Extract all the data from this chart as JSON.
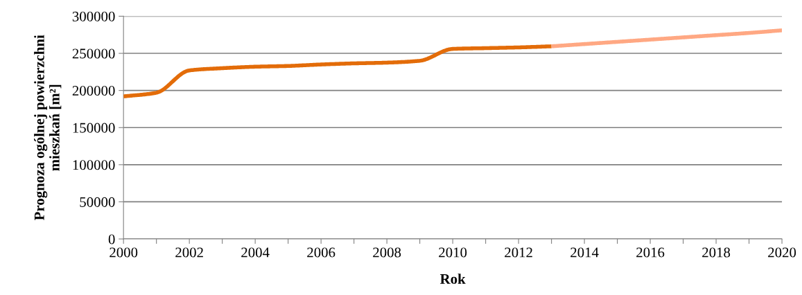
{
  "chart_data": {
    "type": "line",
    "xlabel": "Rok",
    "ylabel": "Prognoza ogólnej powierzchni\nmieszkań [m²]",
    "series": [
      {
        "color": "#e36c09",
        "x": [
          2000,
          2001,
          2002,
          2003,
          2004,
          2005,
          2006,
          2007,
          2008,
          2009,
          2010,
          2011,
          2012,
          2013
        ],
        "values": [
          192000,
          197000,
          227000,
          230000,
          232000,
          233000,
          235000,
          236500,
          237500,
          240000,
          256000,
          257000,
          258000,
          259500
        ]
      },
      {
        "color": "#ffa883",
        "x": [
          2013,
          2014,
          2015,
          2016,
          2017,
          2018,
          2019,
          2020
        ],
        "values": [
          259500,
          262500,
          265500,
          268500,
          271500,
          274500,
          277500,
          281000
        ]
      }
    ],
    "xlim": [
      2000,
      2020
    ],
    "ylim": [
      0,
      300000
    ],
    "xticks": [
      2000,
      {
        "value": 2001,
        "label": null
      },
      2002,
      {
        "value": 2003,
        "label": null
      },
      2004,
      {
        "value": 2005,
        "label": null
      },
      2006,
      {
        "value": 2007,
        "label": null
      },
      2008,
      {
        "value": 2009,
        "label": null
      },
      2010,
      {
        "value": 2011,
        "label": null
      },
      2012,
      {
        "value": 2013,
        "label": null
      },
      2014,
      {
        "value": 2015,
        "label": null
      },
      2016,
      {
        "value": 2017,
        "label": null
      },
      2018,
      {
        "value": 2019,
        "label": null
      },
      2020
    ],
    "yticks": [
      0,
      50000,
      100000,
      150000,
      200000,
      250000,
      300000
    ],
    "grid": "y",
    "legend": false,
    "marker": "none",
    "line_style": "solid"
  }
}
